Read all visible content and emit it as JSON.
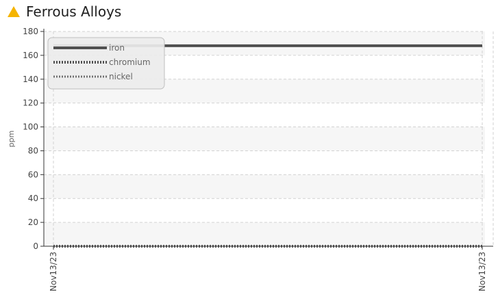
{
  "header": {
    "title": "Ferrous Alloys",
    "status_icon": "warning-triangle-icon",
    "status_color": "#f5b400"
  },
  "chart_data": {
    "type": "line",
    "title": "Ferrous Alloys",
    "xlabel": "",
    "ylabel": "ppm",
    "ylim": [
      0,
      180
    ],
    "yticks": [
      0,
      20,
      40,
      60,
      80,
      100,
      120,
      140,
      160,
      180
    ],
    "x": [
      "Nov13/23",
      "Nov13/23"
    ],
    "grid": true,
    "legend_position": "top-left",
    "series": [
      {
        "name": "iron",
        "values": [
          168,
          168
        ],
        "color": "#505050",
        "style": "solid"
      },
      {
        "name": "chromium",
        "values": [
          0,
          0
        ],
        "color": "#505050",
        "style": "dotted-thick"
      },
      {
        "name": "nickel",
        "values": [
          0,
          0
        ],
        "color": "#707070",
        "style": "dotted"
      }
    ]
  }
}
